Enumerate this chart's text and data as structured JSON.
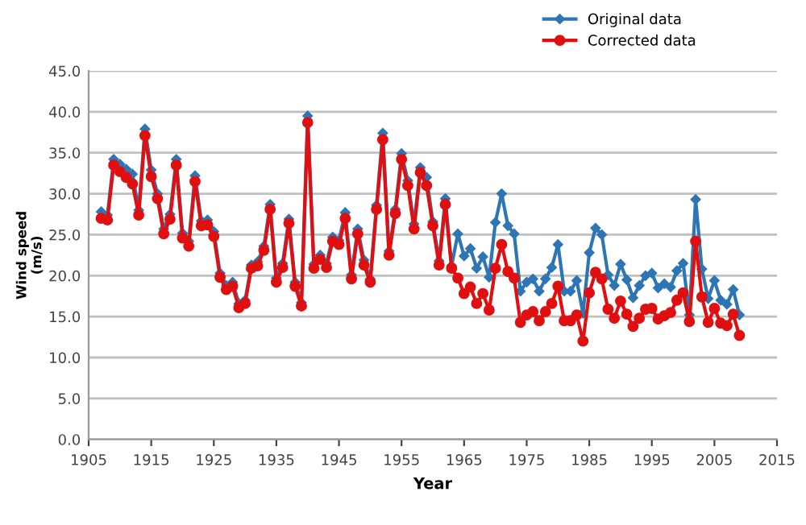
{
  "chart_data": {
    "type": "line",
    "xlabel": "Year",
    "ylabel": "Wind speed\n(m/s)",
    "x": [
      1907,
      1908,
      1909,
      1910,
      1911,
      1912,
      1913,
      1914,
      1915,
      1916,
      1917,
      1918,
      1919,
      1920,
      1921,
      1922,
      1923,
      1924,
      1925,
      1926,
      1927,
      1928,
      1929,
      1930,
      1931,
      1932,
      1933,
      1934,
      1935,
      1936,
      1937,
      1938,
      1939,
      1940,
      1941,
      1942,
      1943,
      1944,
      1945,
      1946,
      1947,
      1948,
      1949,
      1950,
      1951,
      1952,
      1953,
      1954,
      1955,
      1956,
      1957,
      1958,
      1959,
      1960,
      1961,
      1962,
      1963,
      1964,
      1965,
      1966,
      1967,
      1968,
      1969,
      1970,
      1971,
      1972,
      1973,
      1974,
      1975,
      1976,
      1977,
      1978,
      1979,
      1980,
      1981,
      1982,
      1983,
      1984,
      1985,
      1986,
      1987,
      1988,
      1989,
      1990,
      1991,
      1992,
      1993,
      1994,
      1995,
      1996,
      1997,
      1998,
      1999,
      2000,
      2001,
      2002,
      2003,
      2004,
      2005,
      2006,
      2007,
      2008,
      2009
    ],
    "series": [
      {
        "name": "Original data",
        "color": "#2e75b6",
        "marker": "diamond",
        "values": [
          27.8,
          27.4,
          34.2,
          33.6,
          33.0,
          32.4,
          28.0,
          37.9,
          32.9,
          30.0,
          25.7,
          27.5,
          34.2,
          25.2,
          24.2,
          32.2,
          26.7,
          26.8,
          25.4,
          20.3,
          18.8,
          19.2,
          16.6,
          17.0,
          21.3,
          21.7,
          23.6,
          28.7,
          19.7,
          21.5,
          26.9,
          19.2,
          16.7,
          39.5,
          21.4,
          22.5,
          21.5,
          24.7,
          24.3,
          27.7,
          20.1,
          25.7,
          21.9,
          19.6,
          28.6,
          37.4,
          23.0,
          28.1,
          34.9,
          31.6,
          26.3,
          33.2,
          32.0,
          26.6,
          21.8,
          29.4,
          21.2,
          25.1,
          22.4,
          23.3,
          20.9,
          22.3,
          19.8,
          26.5,
          30.0,
          26.1,
          25.1,
          18.1,
          19.2,
          19.6,
          18.1,
          19.6,
          21.0,
          23.8,
          18.1,
          18.1,
          19.4,
          15.4,
          22.8,
          25.8,
          25.0,
          20.1,
          18.8,
          21.4,
          19.5,
          17.3,
          18.8,
          20.0,
          20.3,
          18.5,
          19.0,
          18.6,
          20.6,
          21.5,
          15.2,
          29.3,
          20.8,
          17.2,
          19.4,
          17.0,
          16.5,
          18.3,
          15.2
        ]
      },
      {
        "name": "Corrected data",
        "color": "#e01010",
        "marker": "circle",
        "values": [
          27.0,
          26.8,
          33.5,
          32.7,
          32.0,
          31.2,
          27.4,
          37.1,
          32.1,
          29.4,
          25.1,
          26.9,
          33.5,
          24.6,
          23.6,
          31.5,
          26.1,
          26.2,
          24.8,
          19.8,
          18.3,
          18.7,
          16.1,
          16.6,
          20.9,
          21.2,
          23.1,
          28.1,
          19.2,
          21.0,
          26.4,
          18.7,
          16.3,
          38.7,
          20.9,
          22.0,
          21.0,
          24.2,
          23.8,
          27.0,
          19.6,
          25.1,
          21.3,
          19.2,
          28.1,
          36.6,
          22.5,
          27.6,
          34.2,
          31.0,
          25.7,
          32.6,
          31.0,
          26.1,
          21.3,
          28.7,
          20.9,
          19.7,
          17.8,
          18.6,
          16.6,
          17.8,
          15.8,
          20.9,
          23.8,
          20.5,
          19.7,
          14.3,
          15.2,
          15.6,
          14.5,
          15.6,
          16.6,
          18.7,
          14.5,
          14.5,
          15.2,
          12.0,
          17.9,
          20.4,
          19.6,
          15.9,
          14.8,
          16.9,
          15.3,
          13.8,
          14.8,
          15.9,
          16.0,
          14.7,
          15.1,
          15.5,
          17.0,
          17.9,
          14.4,
          24.2,
          17.4,
          14.3,
          16.0,
          14.2,
          13.9,
          15.3,
          12.7
        ]
      }
    ],
    "xlim": [
      1905,
      2015
    ],
    "xticks": [
      1905,
      1915,
      1925,
      1935,
      1945,
      1955,
      1965,
      1975,
      1985,
      1995,
      2005,
      2015
    ],
    "ylim": [
      0,
      45
    ],
    "yticks": [
      {
        "value": 0,
        "label": "0.0"
      },
      {
        "value": 5,
        "label": "5.0"
      },
      {
        "value": 10,
        "label": "10.0"
      },
      {
        "value": 15,
        "label": "15.0"
      },
      {
        "value": 20,
        "label": "20.0"
      },
      {
        "value": 25,
        "label": "25.0"
      },
      {
        "value": 30,
        "label": "30.0"
      },
      {
        "value": 35,
        "label": "35.0"
      },
      {
        "value": 40,
        "label": "40.0"
      },
      {
        "value": 45,
        "label": "45.0"
      }
    ],
    "grid": "y",
    "legend": "top right",
    "line_style": "solid"
  }
}
